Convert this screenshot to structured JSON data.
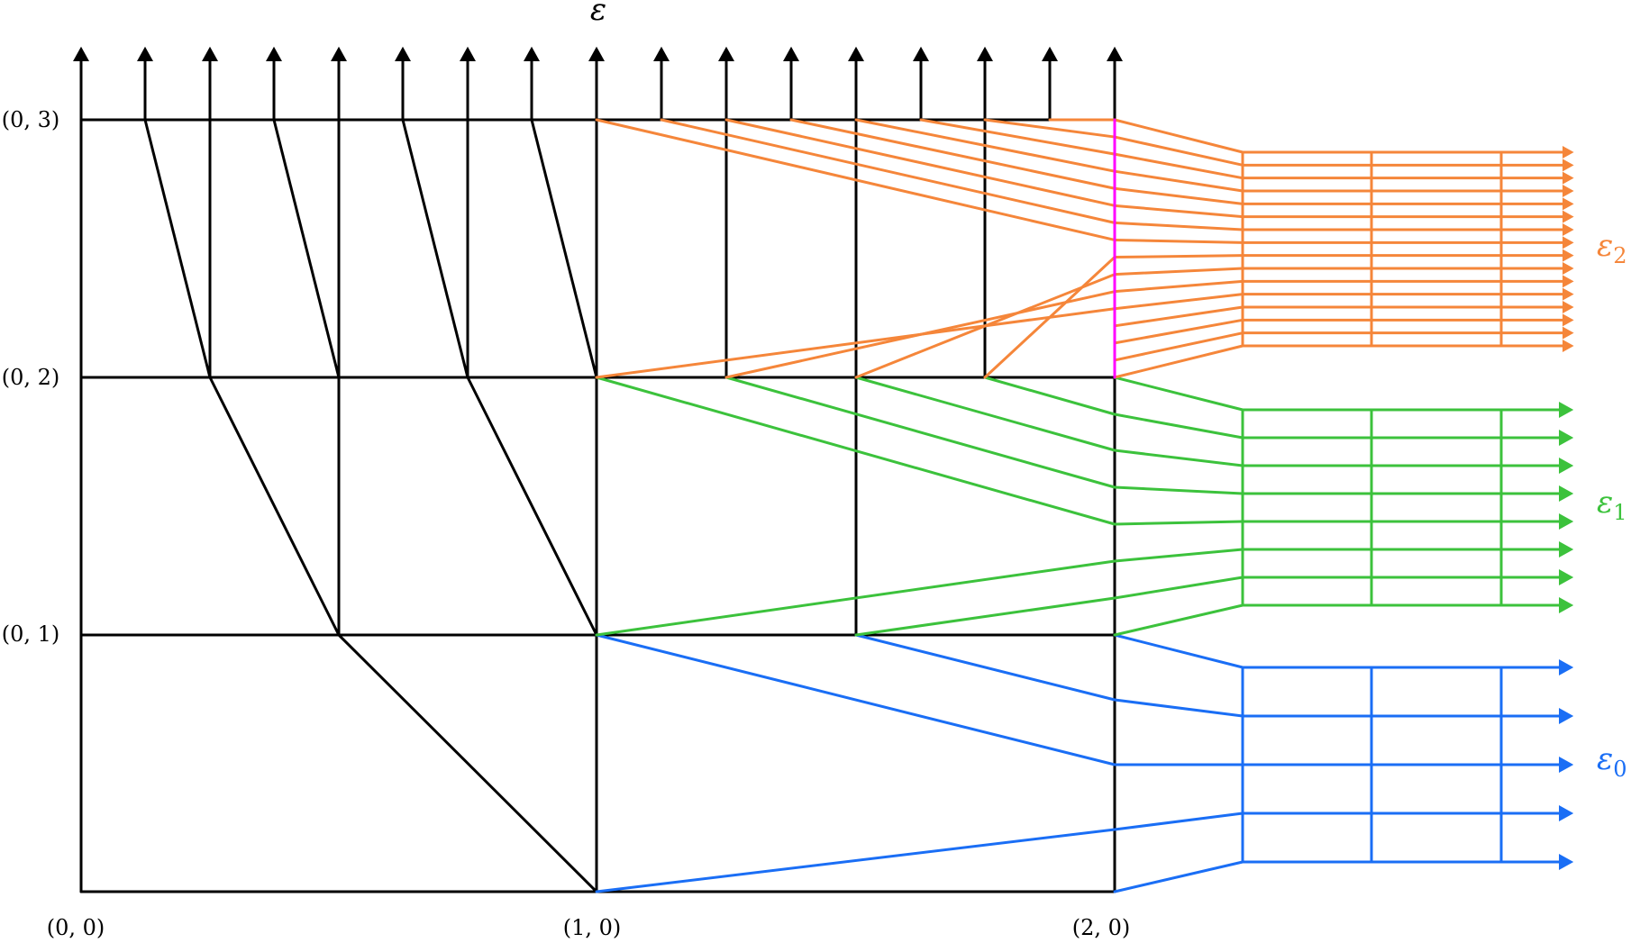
{
  "labels": {
    "top": "ε",
    "coords": [
      "(0, 3)",
      "(0, 2)",
      "(0, 1)",
      "(0, 0)",
      "(1, 0)",
      "(2, 0)"
    ],
    "eps2": "ε",
    "eps2_sub": "2",
    "eps1": "ε",
    "eps1_sub": "1",
    "eps0": "ε",
    "eps0_sub": "0"
  },
  "colors": {
    "black": "#000000",
    "orange": "#f5863a",
    "green": "#3cc23c",
    "blue": "#1a6ef5",
    "magenta": "#ff00ff"
  }
}
